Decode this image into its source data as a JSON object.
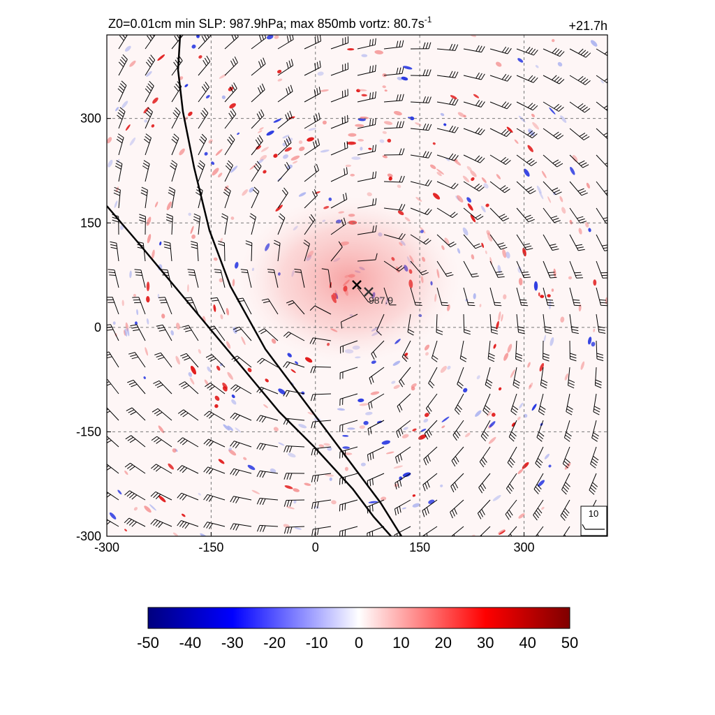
{
  "title": "Z0=0.01cm  min SLP: 987.9hPa; max 850mb vortz:  80.7s",
  "title_sup": "-1",
  "time_label": "+21.7h",
  "center_label": "987.9",
  "barb_ref_label": "10",
  "chart_data": {
    "type": "heatmap",
    "title": "Z0=0.01cm  min SLP: 987.9hPa; max 850mb vortz:  80.7s-1",
    "xlim": [
      -300,
      420
    ],
    "ylim": [
      -300,
      420
    ],
    "x_ticks": [
      -300,
      -150,
      0,
      150,
      300
    ],
    "y_ticks": [
      -300,
      -150,
      0,
      150,
      300
    ],
    "grid": true,
    "min_slp_hPa": 987.9,
    "max_vorticity_850mb": 80.7,
    "forecast_hour": "+21.7h",
    "center_markers": [
      [
        60,
        60
      ],
      [
        75,
        50
      ]
    ],
    "colorbar": {
      "min": -50,
      "max": 50,
      "ticks": [
        -50,
        -40,
        -30,
        -20,
        -10,
        0,
        10,
        20,
        30,
        40,
        50
      ],
      "colors": [
        "#00007f",
        "#0000ff",
        "#ffffff",
        "#ff0000",
        "#7f0000"
      ]
    },
    "barb_reference_speed": 10
  }
}
